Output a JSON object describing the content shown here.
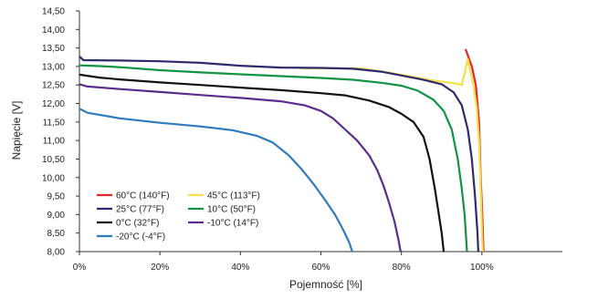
{
  "chart_data": {
    "type": "line",
    "xlabel": "Pojemność [%]",
    "ylabel": "Napięcie [V]",
    "xlim": [
      0,
      120
    ],
    "ylim": [
      8.0,
      14.5
    ],
    "x_ticks": [
      0,
      20,
      40,
      60,
      80,
      100
    ],
    "x_tick_labels": [
      "0%",
      "20%",
      "40%",
      "60%",
      "80%",
      "100%"
    ],
    "y_ticks": [
      8.0,
      8.5,
      9.0,
      9.5,
      10.0,
      10.5,
      11.0,
      11.5,
      12.0,
      12.5,
      13.0,
      13.5,
      14.0,
      14.5
    ],
    "y_tick_labels": [
      "8,00",
      "8,50",
      "9,00",
      "9,50",
      "10,00",
      "10,50",
      "11,00",
      "11,50",
      "12,00",
      "12,50",
      "13,00",
      "13,50",
      "14,00",
      "14,50"
    ],
    "grid": false,
    "legend_position": "bottom-left",
    "series": [
      {
        "name": "60°C (140°F)",
        "color": "#e3262b",
        "points": [
          [
            96,
            13.45
          ],
          [
            97.5,
            13.0
          ],
          [
            98.5,
            12.5
          ],
          [
            99.3,
            11.5
          ],
          [
            99.7,
            10.0
          ],
          [
            100.1,
            9.0
          ],
          [
            100.4,
            8.0
          ]
        ]
      },
      {
        "name": "45°C (113°F)",
        "color": "#f5e04a",
        "points": [
          [
            55,
            12.95
          ],
          [
            70,
            12.95
          ],
          [
            80,
            12.78
          ],
          [
            88,
            12.62
          ],
          [
            93,
            12.55
          ],
          [
            95,
            12.5
          ],
          [
            96.5,
            13.2
          ],
          [
            97.8,
            12.55
          ],
          [
            98.7,
            11.9
          ],
          [
            99.3,
            11.0
          ],
          [
            99.6,
            10.0
          ],
          [
            99.9,
            9.0
          ],
          [
            100.2,
            8.0
          ]
        ]
      },
      {
        "name": "25°C (77°F)",
        "color": "#2e2a6e",
        "points": [
          [
            0,
            13.27
          ],
          [
            1,
            13.17
          ],
          [
            10,
            13.16
          ],
          [
            20,
            13.14
          ],
          [
            30,
            13.1
          ],
          [
            40,
            13.02
          ],
          [
            50,
            12.97
          ],
          [
            60,
            12.96
          ],
          [
            68,
            12.94
          ],
          [
            75,
            12.86
          ],
          [
            85,
            12.65
          ],
          [
            90,
            12.52
          ],
          [
            93,
            12.3
          ],
          [
            95,
            11.95
          ],
          [
            96.5,
            11.3
          ],
          [
            97.5,
            10.5
          ],
          [
            98.3,
            9.5
          ],
          [
            98.9,
            8.5
          ],
          [
            99.1,
            8.0
          ]
        ]
      },
      {
        "name": "10°C (50°F)",
        "color": "#119444",
        "points": [
          [
            0,
            13.03
          ],
          [
            5,
            13.01
          ],
          [
            10,
            12.98
          ],
          [
            20,
            12.9
          ],
          [
            30,
            12.84
          ],
          [
            40,
            12.79
          ],
          [
            50,
            12.74
          ],
          [
            60,
            12.69
          ],
          [
            68,
            12.64
          ],
          [
            75,
            12.56
          ],
          [
            80,
            12.48
          ],
          [
            84,
            12.35
          ],
          [
            88,
            12.1
          ],
          [
            90.5,
            11.8
          ],
          [
            92.5,
            11.3
          ],
          [
            94,
            10.5
          ],
          [
            95,
            9.7
          ],
          [
            95.7,
            9.0
          ],
          [
            96.3,
            8.0
          ]
        ]
      },
      {
        "name": "0°C (32°F)",
        "color": "#111111",
        "points": [
          [
            0,
            12.78
          ],
          [
            5,
            12.7
          ],
          [
            10,
            12.65
          ],
          [
            20,
            12.57
          ],
          [
            30,
            12.5
          ],
          [
            40,
            12.43
          ],
          [
            50,
            12.36
          ],
          [
            60,
            12.28
          ],
          [
            66,
            12.22
          ],
          [
            72,
            12.08
          ],
          [
            77,
            11.9
          ],
          [
            80,
            11.72
          ],
          [
            83,
            11.5
          ],
          [
            85.5,
            11.1
          ],
          [
            87,
            10.5
          ],
          [
            88.3,
            9.7
          ],
          [
            89.3,
            9.0
          ],
          [
            90,
            8.5
          ],
          [
            90.5,
            8.0
          ]
        ]
      },
      {
        "name": "-10°C (14°F)",
        "color": "#5a2d8c",
        "points": [
          [
            0,
            12.52
          ],
          [
            2,
            12.46
          ],
          [
            10,
            12.39
          ],
          [
            20,
            12.31
          ],
          [
            30,
            12.23
          ],
          [
            40,
            12.15
          ],
          [
            50,
            12.06
          ],
          [
            56,
            11.95
          ],
          [
            60,
            11.8
          ],
          [
            63,
            11.6
          ],
          [
            66,
            11.3
          ],
          [
            69,
            11.0
          ],
          [
            72,
            10.6
          ],
          [
            74,
            10.2
          ],
          [
            75.5,
            9.8
          ],
          [
            77,
            9.3
          ],
          [
            78.3,
            8.8
          ],
          [
            79.3,
            8.3
          ],
          [
            79.8,
            8.0
          ]
        ]
      },
      {
        "name": "-20°C (-4°F)",
        "color": "#2f7bbf",
        "points": [
          [
            0,
            11.86
          ],
          [
            2,
            11.75
          ],
          [
            10,
            11.6
          ],
          [
            20,
            11.48
          ],
          [
            30,
            11.38
          ],
          [
            38,
            11.28
          ],
          [
            44,
            11.13
          ],
          [
            48,
            10.95
          ],
          [
            52,
            10.6
          ],
          [
            55,
            10.25
          ],
          [
            58,
            9.85
          ],
          [
            61,
            9.4
          ],
          [
            63.5,
            9.0
          ],
          [
            65.5,
            8.6
          ],
          [
            67,
            8.25
          ],
          [
            67.8,
            8.0
          ]
        ]
      }
    ],
    "legend_order": [
      0,
      1,
      2,
      3,
      4,
      5,
      6
    ]
  }
}
